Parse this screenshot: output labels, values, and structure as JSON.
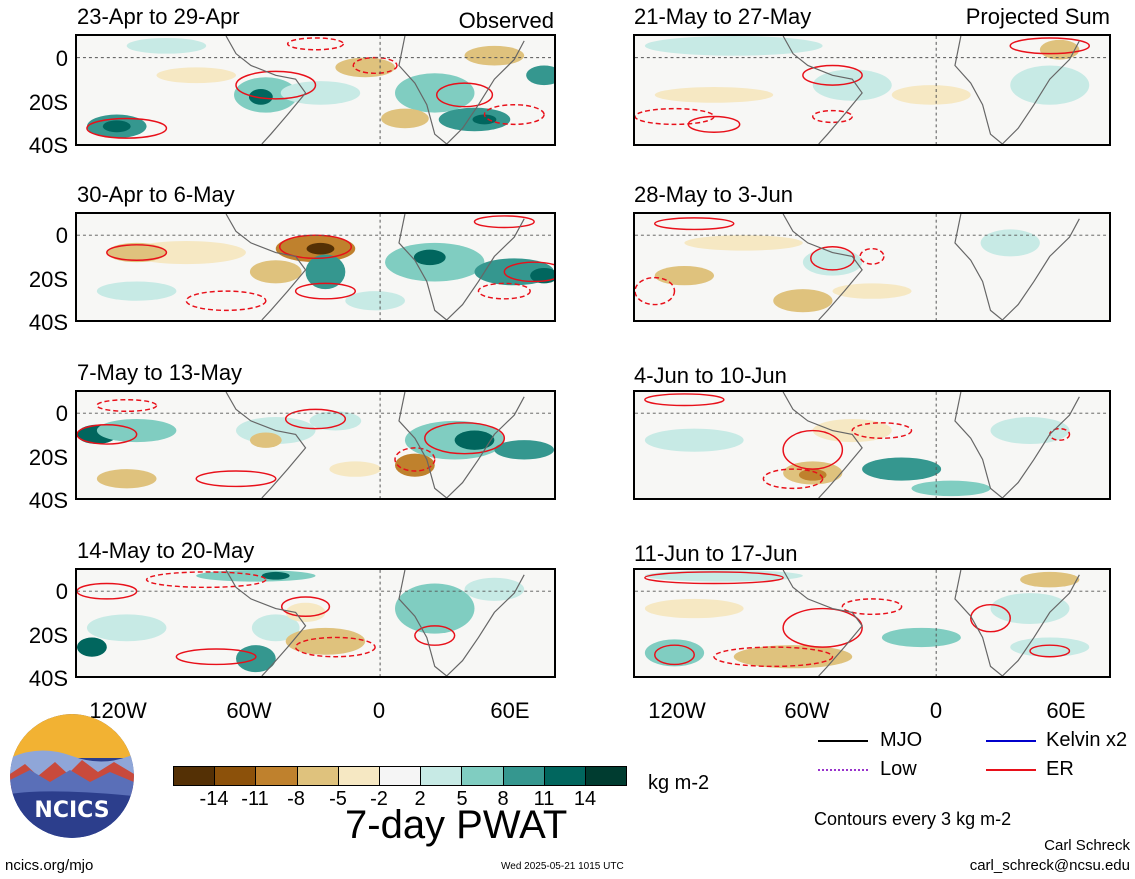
{
  "map_type": "weekly precipitable water anomaly maps",
  "colors": {
    "scale": [
      "#543005",
      "#8c510a",
      "#bf812d",
      "#dfc27d",
      "#f6e8c3",
      "#f5f5f5",
      "#c7eae5",
      "#80cdc1",
      "#35978f",
      "#01665e",
      "#003c30"
    ],
    "mjo": "#000000",
    "kelvin": "#0000cc",
    "low": "#9933cc",
    "er": "#e8101a"
  },
  "observed": {
    "tag": "Observed",
    "panels": [
      {
        "title": "23-Apr to 29-Apr"
      },
      {
        "title": "30-Apr to 6-May"
      },
      {
        "title": "7-May to 13-May"
      },
      {
        "title": "14-May to 20-May"
      }
    ]
  },
  "projected": {
    "tag": "Projected Sum",
    "panels": [
      {
        "title": "21-May to 27-May"
      },
      {
        "title": "28-May to 3-Jun"
      },
      {
        "title": "4-Jun to 10-Jun"
      },
      {
        "title": "11-Jun to 17-Jun"
      }
    ]
  },
  "axes": {
    "lat_labels": [
      "0",
      "20S",
      "40S"
    ],
    "lon_labels": [
      "120W",
      "60W",
      "0",
      "60E"
    ]
  },
  "colorbar": {
    "ticks": [
      "-14",
      "-11",
      "-8",
      "-5",
      "-2",
      "2",
      "5",
      "8",
      "11",
      "14"
    ],
    "units": "kg m-2",
    "title": "7-day PWAT"
  },
  "legend": {
    "mjo": "MJO",
    "kelvin": "Kelvin x2",
    "low": "Low",
    "er": "ER",
    "contour_note": "Contours every 3 kg m-2"
  },
  "footer": {
    "author": "Carl Schreck",
    "email": "carl_schreck@ncsu.edu",
    "url": "ncics.org/mjo",
    "timestamp": "Wed 2025-05-21 1015 UTC",
    "logo_text": "NCICS"
  }
}
